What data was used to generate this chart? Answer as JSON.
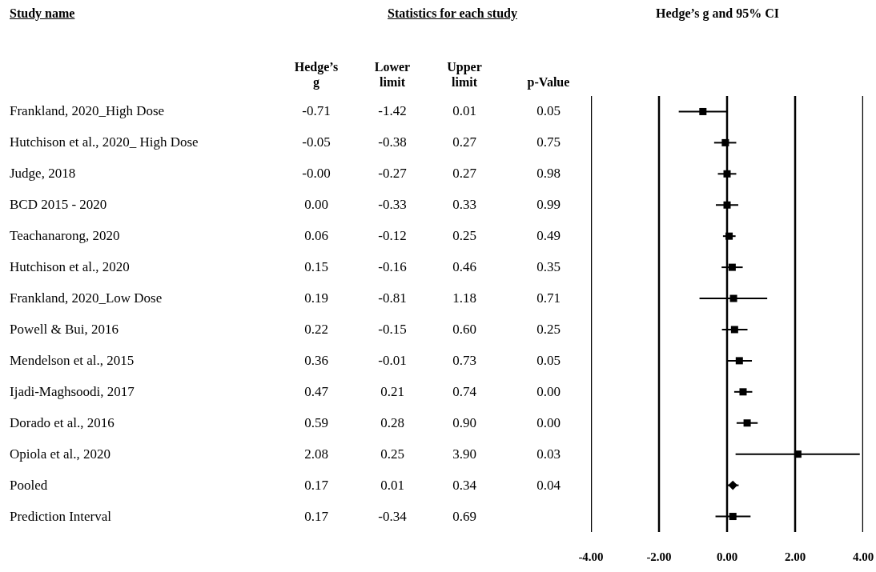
{
  "chart_data": [
    {
      "type": "other",
      "title": "Statistics for each study",
      "ylabel": "Study name",
      "categories": [
        "Hedge’s g",
        "Lower limit",
        "Upper limit",
        "p-Value"
      ],
      "y_categories": [
        "Frankland, 2020_High Dose",
        "Hutchison et al., 2020_ High  Dose",
        "Judge, 2018",
        "BCD 2015 - 2020",
        "Teachanarong, 2020",
        "Hutchison et al., 2020",
        "Frankland, 2020_Low Dose",
        "Powell & Bui, 2016",
        "Mendelson et al., 2015",
        "Ijadi-Maghsoodi, 2017",
        "Dorado et al., 2016",
        "Opiola et al., 2020",
        "Pooled",
        "Prediction Interval"
      ],
      "cell_labels": [
        [
          "-0.71",
          "-1.42",
          "0.01",
          "0.05"
        ],
        [
          "-0.05",
          "-0.38",
          "0.27",
          "0.75"
        ],
        [
          "-0.00",
          "-0.27",
          "0.27",
          "0.98"
        ],
        [
          "0.00",
          "-0.33",
          "0.33",
          "0.99"
        ],
        [
          "0.06",
          "-0.12",
          "0.25",
          "0.49"
        ],
        [
          "0.15",
          "-0.16",
          "0.46",
          "0.35"
        ],
        [
          "0.19",
          "-0.81",
          "1.18",
          "0.71"
        ],
        [
          "0.22",
          "-0.15",
          "0.60",
          "0.25"
        ],
        [
          "0.36",
          "-0.01",
          "0.73",
          "0.05"
        ],
        [
          "0.47",
          "0.21",
          "0.74",
          "0.00"
        ],
        [
          "0.59",
          "0.28",
          "0.90",
          "0.00"
        ],
        [
          "2.08",
          "0.25",
          "3.90",
          "0.03"
        ],
        [
          "0.17",
          "0.01",
          "0.34",
          "0.04"
        ],
        [
          "0.17",
          "-0.34",
          "0.69",
          null
        ]
      ]
    },
    {
      "type": "scatter",
      "orientation": "horizontal",
      "title": "Hedge’s g and 95% CI",
      "categories": [
        null,
        null,
        null,
        null,
        null,
        null,
        null,
        null,
        null,
        null,
        null,
        null,
        null,
        null
      ],
      "series": [
        {
          "color": "#000000",
          "marker": "square",
          "values": [
            -0.71,
            -0.05,
            0,
            0,
            0.06,
            0.15,
            0.19,
            0.22,
            0.36,
            0.47,
            0.59,
            2.08,
            null,
            null
          ],
          "errors": [
            [
              -1.42,
              0.01
            ],
            [
              -0.38,
              0.27
            ],
            [
              -0.27,
              0.27
            ],
            [
              -0.33,
              0.33
            ],
            [
              -0.12,
              0.25
            ],
            [
              -0.16,
              0.46
            ],
            [
              -0.81,
              1.18
            ],
            [
              -0.15,
              0.6
            ],
            [
              -0.01,
              0.73
            ],
            [
              0.21,
              0.74
            ],
            [
              0.28,
              0.9
            ],
            [
              0.25,
              3.9
            ],
            null,
            null
          ]
        },
        {
          "color": "#000000",
          "marker": "diamond",
          "values": [
            null,
            null,
            null,
            null,
            null,
            null,
            null,
            null,
            null,
            null,
            null,
            null,
            0.17,
            null
          ],
          "errors": [
            null,
            null,
            null,
            null,
            null,
            null,
            null,
            null,
            null,
            null,
            null,
            null,
            [
              0.01,
              0.34
            ],
            null
          ]
        },
        {
          "color": "#000000",
          "marker": "square",
          "values": [
            null,
            null,
            null,
            null,
            null,
            null,
            null,
            null,
            null,
            null,
            null,
            null,
            null,
            0.17
          ],
          "errors": [
            null,
            null,
            null,
            null,
            null,
            null,
            null,
            null,
            null,
            null,
            null,
            null,
            null,
            [
              -0.34,
              0.69
            ]
          ]
        }
      ],
      "xlim": [
        -4,
        4
      ],
      "xticks": [
        {
          "value": -4,
          "label": "-4.00"
        },
        {
          "value": -2,
          "label": "-2.00"
        },
        {
          "value": 0,
          "label": "0.00"
        },
        {
          "value": 2,
          "label": "2.00"
        },
        {
          "value": 4,
          "label": "4.00"
        }
      ],
      "grid": "x",
      "tick_labels": "x"
    }
  ]
}
